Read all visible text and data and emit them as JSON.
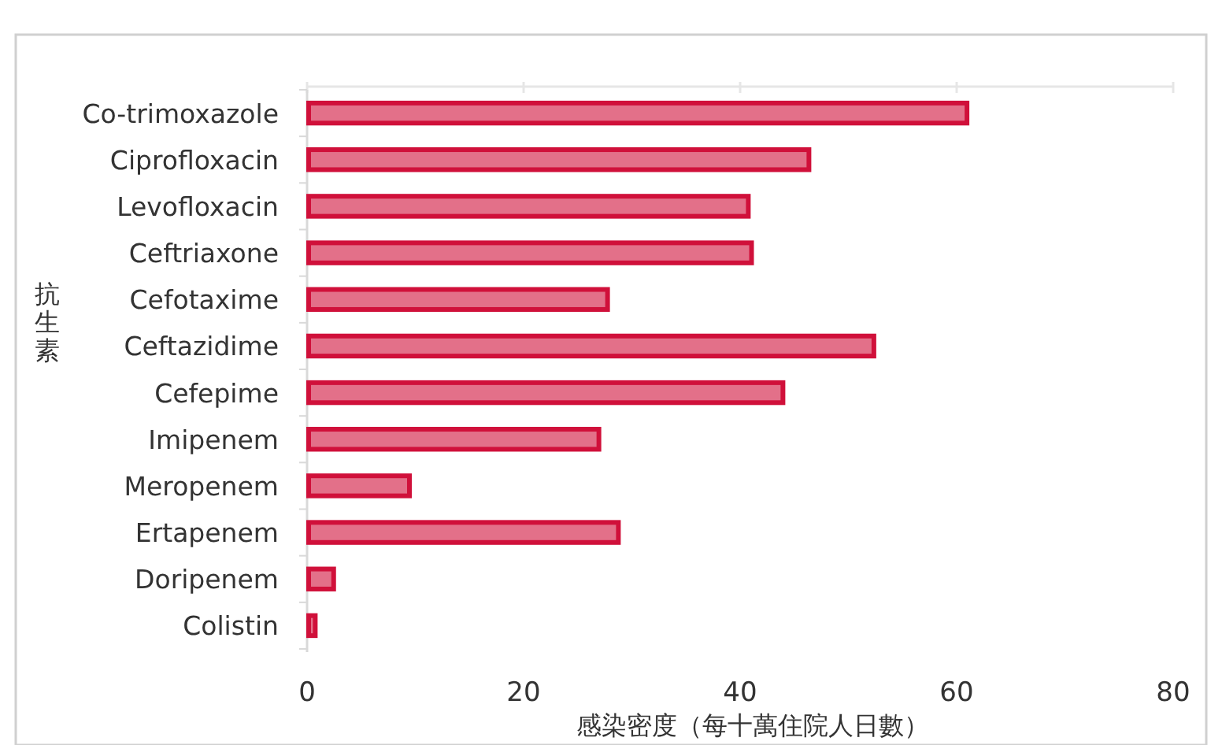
{
  "chart_data": {
    "type": "bar",
    "orientation": "horizontal",
    "xlabel": "感染密度（每十萬住院人日數）",
    "ylabel": "抗生素",
    "categories": [
      "Co-trimoxazole",
      "Ciprofloxacin",
      "Levofloxacin",
      "Ceftriaxone",
      "Cefotaxime",
      "Ceftazidime",
      "Cefepime",
      "Imipenem",
      "Meropenem",
      "Ertapenem",
      "Doripenem",
      "Colistin"
    ],
    "values": [
      61.1,
      46.5,
      40.9,
      41.2,
      27.9,
      52.5,
      44.1,
      27.1,
      9.6,
      28.9,
      2.6,
      0.9
    ],
    "color": "#d0103a",
    "xlim": [
      0,
      80
    ],
    "xticks": [
      0,
      20,
      40,
      60,
      80
    ]
  }
}
